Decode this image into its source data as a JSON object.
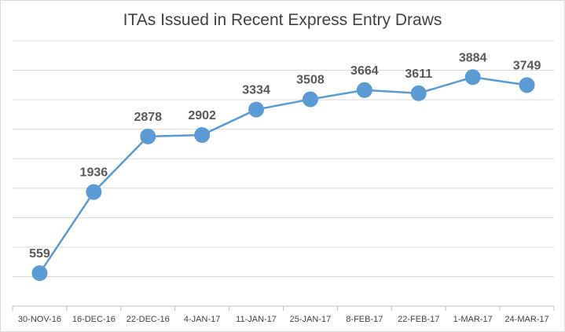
{
  "chart_data": {
    "type": "line",
    "title": "ITAs Issued in Recent Express Entry Draws",
    "xlabel": "",
    "ylabel": "",
    "categories": [
      "30-NOV-16",
      "16-DEC-16",
      "22-DEC-16",
      "4-JAN-17",
      "11-JAN-17",
      "25-JAN-17",
      "8-FEB-17",
      "22-FEB-17",
      "1-MAR-17",
      "24-MAR-17"
    ],
    "series": [
      {
        "values": [
          559,
          1936,
          2878,
          2902,
          3334,
          3508,
          3664,
          3611,
          3884,
          3749
        ]
      }
    ],
    "ylim": [
      0,
      4500
    ],
    "grid": true,
    "legend": "none",
    "data_labels": true,
    "colors": {
      "line": "#5b9bd5",
      "grid": "#d9d9d9",
      "label": "#595959",
      "axis": "#bfbfbf"
    }
  }
}
